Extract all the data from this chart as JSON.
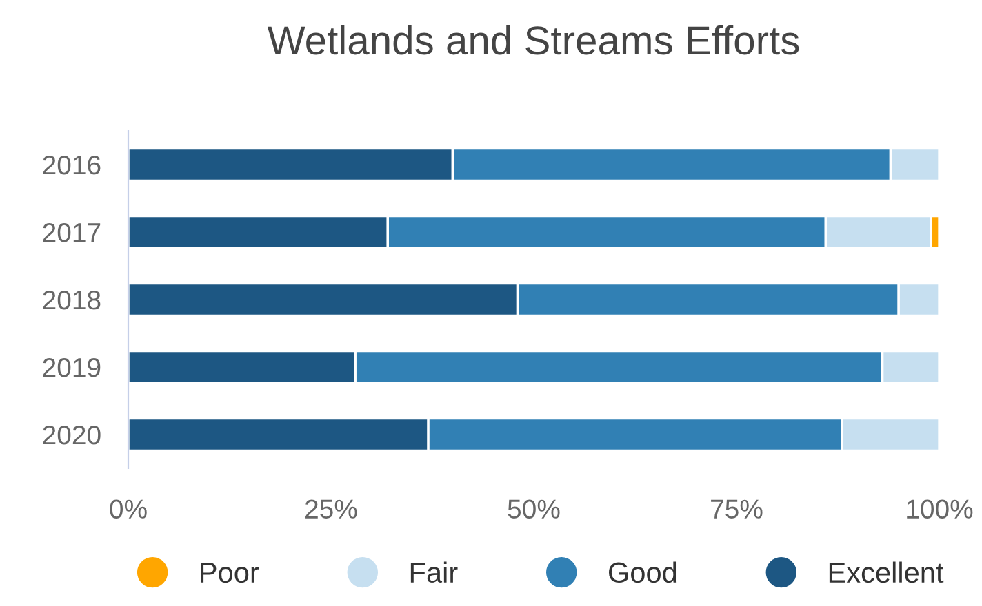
{
  "chart_data": {
    "type": "bar",
    "title": "Wetlands and Streams Efforts",
    "orientation": "horizontal",
    "stacked": true,
    "categories": [
      "2016",
      "2017",
      "2018",
      "2019",
      "2020"
    ],
    "series": [
      {
        "name": "Excellent",
        "color": "#1d5783",
        "values": [
          40,
          32,
          48,
          28,
          37
        ]
      },
      {
        "name": "Good",
        "color": "#3180b4",
        "values": [
          54,
          54,
          47,
          65,
          51
        ]
      },
      {
        "name": "Fair",
        "color": "#c6dff0",
        "values": [
          6,
          13,
          5,
          7,
          12
        ]
      },
      {
        "name": "Poor",
        "color": "#ffa600",
        "values": [
          null,
          1,
          null,
          null,
          null
        ]
      }
    ],
    "xlim": [
      0,
      100
    ],
    "xticks": [
      {
        "value": 0,
        "label": "0%"
      },
      {
        "value": 25,
        "label": "25%"
      },
      {
        "value": 50,
        "label": "50%"
      },
      {
        "value": 75,
        "label": "75%"
      },
      {
        "value": 100,
        "label": "100%"
      }
    ],
    "grid": false,
    "legend": "bottom"
  }
}
